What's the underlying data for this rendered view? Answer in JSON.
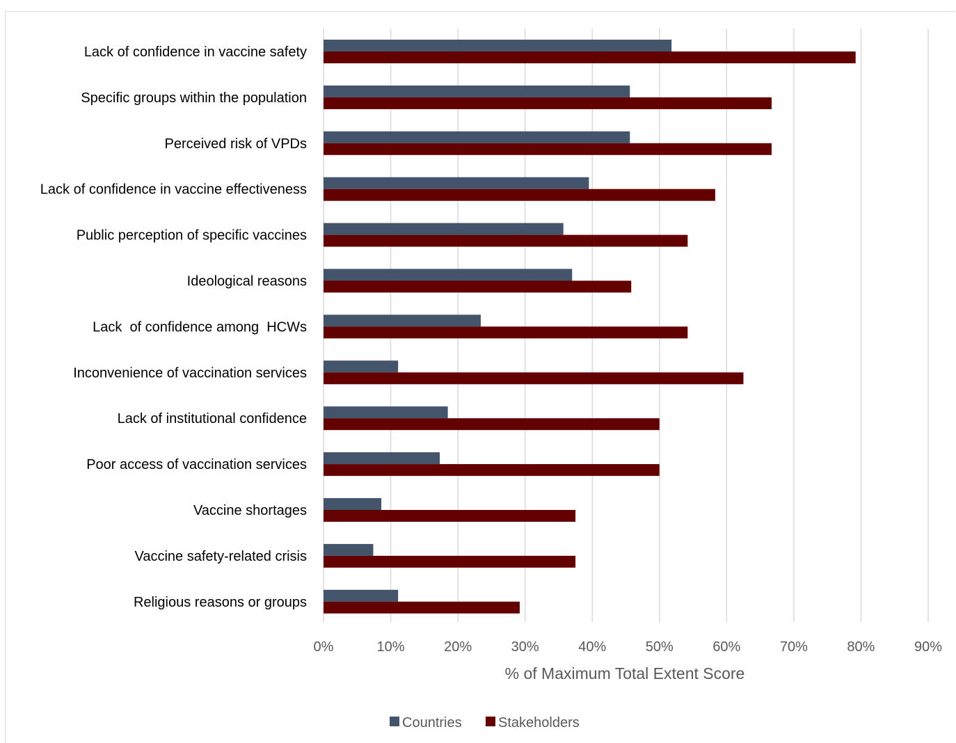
{
  "chart_data": {
    "type": "bar",
    "orientation": "horizontal",
    "xlabel": "% of Maximum Total Extent Score",
    "xlim": [
      0,
      90
    ],
    "x_ticks": [
      "0%",
      "10%",
      "20%",
      "30%",
      "40%",
      "50%",
      "60%",
      "70%",
      "80%",
      "90%"
    ],
    "grid": true,
    "legend_position": "bottom",
    "categories": [
      "Lack of confidence in vaccine safety",
      "Specific groups within the population",
      "Perceived risk of VPDs",
      "Lack of confidence in vaccine effectiveness",
      "Public perception of specific vaccines",
      "Ideological reasons",
      "Lack  of confidence among  HCWs",
      "Inconvenience of vaccination services",
      "Lack of institutional confidence",
      "Poor access of vaccination services",
      "Vaccine shortages",
      "Vaccine safety-related crisis",
      "Religious reasons or groups"
    ],
    "series": [
      {
        "name": "Countries",
        "color": "#44546a",
        "values": [
          51.8,
          45.6,
          45.6,
          39.5,
          35.7,
          37.0,
          23.4,
          11.1,
          18.5,
          17.3,
          8.6,
          7.4,
          11.1
        ]
      },
      {
        "name": "Stakeholders",
        "color": "#630000",
        "values": [
          79.2,
          66.7,
          66.7,
          58.3,
          54.2,
          45.8,
          54.2,
          62.5,
          50.0,
          50.0,
          37.5,
          37.5,
          29.2
        ]
      }
    ]
  }
}
